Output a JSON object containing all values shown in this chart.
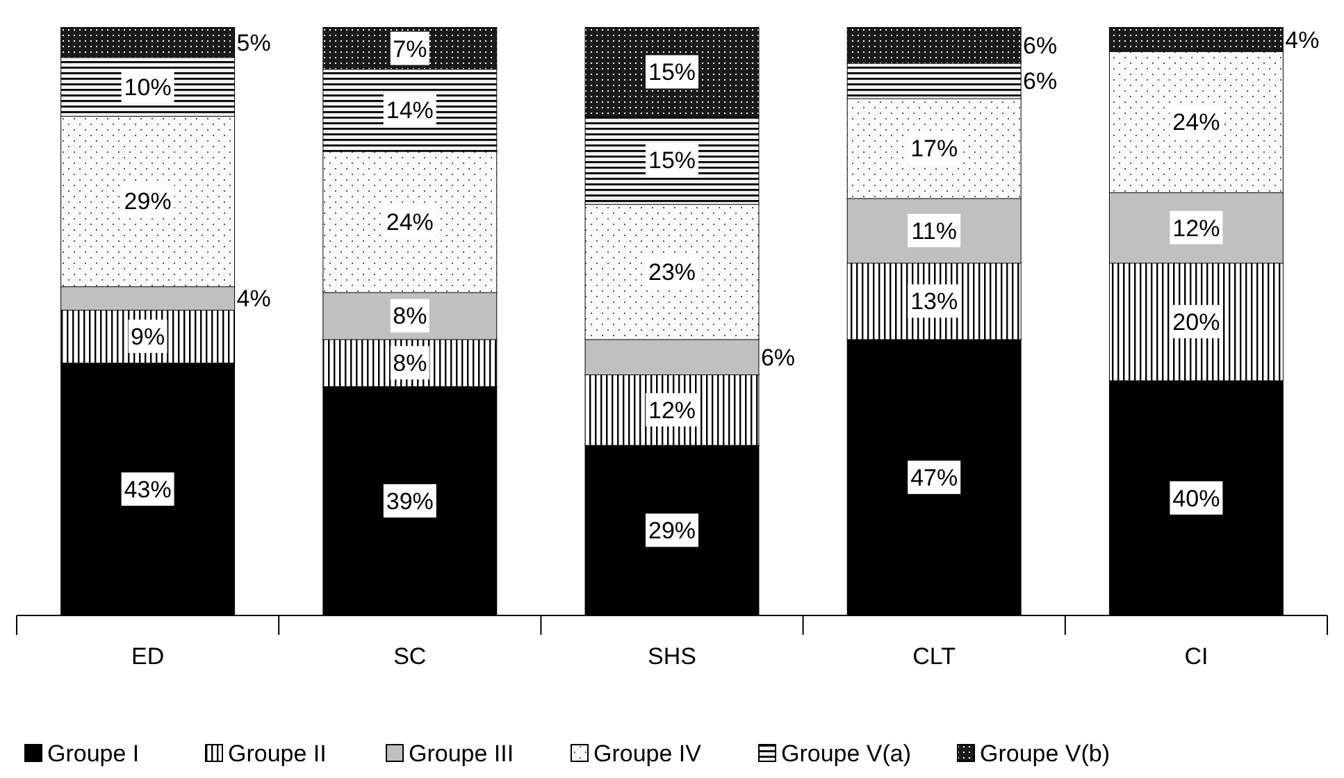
{
  "chart_data": {
    "type": "bar",
    "stacked": true,
    "legend": "bottom",
    "categories": [
      "ED",
      "SC",
      "SHS",
      "CLT",
      "CI"
    ],
    "series": [
      {
        "name": "Groupe I",
        "color": "#000000",
        "values": [
          43,
          39,
          29,
          47,
          40
        ],
        "value_labels": [
          "43%",
          "39%",
          "29%",
          "47%",
          "40%"
        ]
      },
      {
        "name": "Groupe II",
        "color": "#ffffff",
        "values": [
          9,
          8,
          12,
          13,
          20
        ],
        "value_labels": [
          "9%",
          "8%",
          "12%",
          "13%",
          "20%"
        ]
      },
      {
        "name": "Groupe III",
        "color": "#c0c0c0",
        "values": [
          4,
          8,
          6,
          11,
          12
        ],
        "value_labels": [
          "4%",
          "8%",
          "6%",
          "11%",
          "12%"
        ]
      },
      {
        "name": "Groupe IV",
        "color": "#fafafa",
        "values": [
          29,
          24,
          23,
          17,
          24
        ],
        "value_labels": [
          "29%",
          "24%",
          "23%",
          "17%",
          "24%"
        ]
      },
      {
        "name": "Groupe V(a)",
        "color": "#f2f2f2",
        "values": [
          10,
          14,
          15,
          6,
          null
        ],
        "value_labels": [
          "10%",
          "14%",
          "15%",
          "6%",
          null
        ]
      },
      {
        "name": "Groupe V(b)",
        "color": "#1a1a1a",
        "values": [
          5,
          7,
          15,
          6,
          4
        ],
        "value_labels": [
          "5%",
          "7%",
          "15%",
          "6%",
          "4%"
        ]
      }
    ]
  }
}
